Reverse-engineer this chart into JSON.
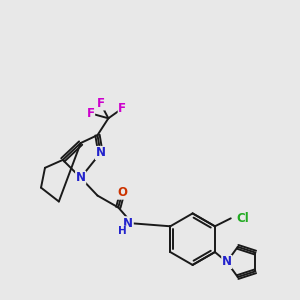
{
  "bg_color": "#e8e8e8",
  "bond_color": "#1a1a1a",
  "bond_width": 1.4,
  "atom_colors": {
    "N": "#2222cc",
    "O": "#cc3300",
    "F": "#cc00cc",
    "Cl": "#22aa22",
    "H": "#666666",
    "C": "#1a1a1a"
  },
  "font_size": 8.5
}
